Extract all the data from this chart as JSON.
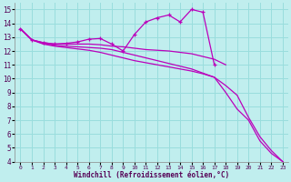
{
  "xlabel": "Windchill (Refroidissement éolien,°C)",
  "xlim": [
    -0.5,
    23.5
  ],
  "ylim": [
    4,
    15.5
  ],
  "xticks": [
    0,
    1,
    2,
    3,
    4,
    5,
    6,
    7,
    8,
    9,
    10,
    11,
    12,
    13,
    14,
    15,
    16,
    17,
    18,
    19,
    20,
    21,
    22,
    23
  ],
  "yticks": [
    4,
    5,
    6,
    7,
    8,
    9,
    10,
    11,
    12,
    13,
    14,
    15
  ],
  "bg_color": "#c0eeee",
  "grid_color": "#99dddd",
  "line_color": "#bb00bb",
  "curves": [
    {
      "x": [
        0,
        1,
        2,
        3,
        4,
        5,
        6,
        7,
        8,
        9,
        10,
        11,
        12,
        13,
        14,
        15,
        16,
        17,
        18
      ],
      "y": [
        13.6,
        12.8,
        12.6,
        12.5,
        12.5,
        12.5,
        12.5,
        12.45,
        12.35,
        12.3,
        12.2,
        12.1,
        12.05,
        12.0,
        11.9,
        11.8,
        11.6,
        11.4,
        11.0
      ],
      "markers": false
    },
    {
      "x": [
        0,
        1,
        2,
        3,
        4,
        5,
        6,
        7,
        8,
        9,
        10,
        11,
        12,
        13,
        14,
        15,
        16,
        17,
        18,
        19,
        20,
        21,
        22,
        23
      ],
      "y": [
        13.6,
        12.8,
        12.55,
        12.4,
        12.35,
        12.3,
        12.25,
        12.2,
        12.1,
        11.9,
        11.7,
        11.5,
        11.3,
        11.1,
        10.9,
        10.7,
        10.4,
        10.1,
        9.5,
        8.8,
        7.2,
        5.8,
        4.8,
        4.0
      ],
      "markers": false
    },
    {
      "x": [
        0,
        1,
        2,
        3,
        4,
        5,
        6,
        7,
        8,
        9,
        10,
        11,
        12,
        13,
        14,
        15,
        16,
        17,
        18,
        19,
        20,
        21,
        22,
        23
      ],
      "y": [
        13.6,
        12.8,
        12.5,
        12.35,
        12.25,
        12.15,
        12.05,
        11.9,
        11.7,
        11.5,
        11.3,
        11.15,
        11.0,
        10.85,
        10.7,
        10.55,
        10.35,
        10.1,
        9.0,
        7.8,
        7.0,
        5.5,
        4.6,
        4.0
      ],
      "markers": false
    },
    {
      "x": [
        0,
        1,
        2,
        3,
        4,
        5,
        6,
        7,
        8,
        9,
        10,
        11,
        12,
        13,
        14,
        15,
        16,
        17
      ],
      "y": [
        13.6,
        12.8,
        12.6,
        12.5,
        12.55,
        12.65,
        12.85,
        12.9,
        12.5,
        12.0,
        13.2,
        14.1,
        14.4,
        14.6,
        14.1,
        15.0,
        14.8,
        11.0
      ],
      "markers": true
    }
  ]
}
